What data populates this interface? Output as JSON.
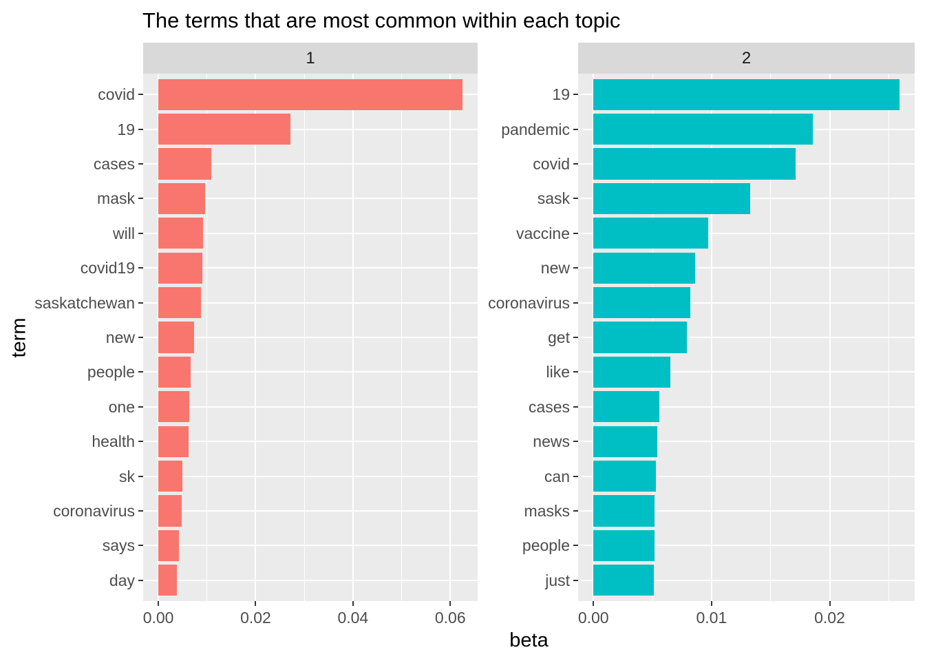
{
  "title": "The terms that are most common within each topic",
  "axes": {
    "x_label": "beta",
    "y_label": "term"
  },
  "theme": {
    "panel_background": "#EBEBEB",
    "strip_background": "#D9D9D9",
    "gridline_color": "#FFFFFF",
    "tick_mark_color": "#333333",
    "tick_label_color": "#4D4D4D",
    "title_color": "#000000"
  },
  "chart_data": [
    {
      "type": "bar",
      "orientation": "horizontal",
      "facet": "1",
      "bar_color": "#F8766D",
      "categories": [
        "covid",
        "19",
        "cases",
        "mask",
        "will",
        "covid19",
        "saskatchewan",
        "new",
        "people",
        "one",
        "health",
        "sk",
        "coronavirus",
        "says",
        "day"
      ],
      "values": [
        0.0625,
        0.0272,
        0.0109,
        0.0096,
        0.0092,
        0.009,
        0.0088,
        0.0073,
        0.0066,
        0.0063,
        0.0062,
        0.0049,
        0.0048,
        0.0042,
        0.0038
      ],
      "xlim": [
        0,
        0.0688
      ],
      "grid": true,
      "x_ticks": {
        "major": [
          {
            "value": 0.0,
            "label": "0.00"
          },
          {
            "value": 0.02,
            "label": "0.02"
          },
          {
            "value": 0.04,
            "label": "0.04"
          },
          {
            "value": 0.06,
            "label": "0.06"
          }
        ],
        "minor": [
          0.01,
          0.03,
          0.05
        ]
      }
    },
    {
      "type": "bar",
      "orientation": "horizontal",
      "facet": "2",
      "bar_color": "#00BFC4",
      "categories": [
        "19",
        "pandemic",
        "covid",
        "sask",
        "vaccine",
        "new",
        "coronavirus",
        "get",
        "like",
        "cases",
        "news",
        "can",
        "masks",
        "people",
        "just"
      ],
      "values": [
        0.0259,
        0.0186,
        0.0171,
        0.0133,
        0.0097,
        0.0086,
        0.0082,
        0.0079,
        0.0065,
        0.0056,
        0.0054,
        0.0053,
        0.0052,
        0.0052,
        0.0051
      ],
      "xlim": [
        0,
        0.0285
      ],
      "grid": true,
      "x_ticks": {
        "major": [
          {
            "value": 0.0,
            "label": "0.00"
          },
          {
            "value": 0.01,
            "label": "0.01"
          },
          {
            "value": 0.02,
            "label": "0.02"
          }
        ],
        "minor": [
          0.005,
          0.015,
          0.025
        ]
      }
    }
  ]
}
